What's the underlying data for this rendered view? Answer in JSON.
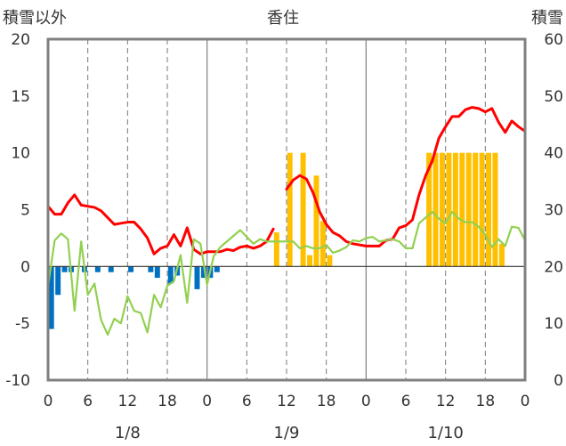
{
  "chart_data": {
    "type": "bar+line",
    "title": "香住",
    "left_axis_label": "積雪以外",
    "right_axis_label": "積雪",
    "left_ylim": [
      -10,
      20
    ],
    "left_yticks": [
      "-10",
      "-5",
      "0",
      "5",
      "10",
      "15",
      "20"
    ],
    "right_ylim": [
      0,
      60
    ],
    "right_yticks": [
      "0",
      "10",
      "20",
      "30",
      "40",
      "50",
      "60"
    ],
    "x_range_hours": [
      0,
      72
    ],
    "x_tick_labels": [
      "0",
      "6",
      "12",
      "18",
      "0",
      "6",
      "12",
      "18",
      "0",
      "6",
      "12",
      "18",
      "0"
    ],
    "date_labels": [
      "1/8",
      "1/9",
      "1/10"
    ],
    "grid": true,
    "colors": {
      "temperature": "#ff0000",
      "wind": "#92d050",
      "precipitation_positive": "#ffc000",
      "precipitation_negative": "#0070c0",
      "snow_depth": "#7030a0",
      "frame": "#808080"
    },
    "series": [
      {
        "axis": "left",
        "kind": "bar",
        "x_hours": [
          0,
          1,
          2,
          3,
          5,
          7,
          9,
          12,
          15,
          16,
          18,
          19,
          22,
          23,
          24,
          25,
          34,
          36,
          38,
          39,
          40,
          41,
          42,
          57,
          58,
          59,
          60,
          61,
          62,
          63,
          64,
          65,
          66,
          67,
          68
        ],
        "values": [
          -5.5,
          -2.5,
          -0.5,
          -0.5,
          -0.5,
          -0.5,
          -0.5,
          -0.5,
          -0.5,
          -1.0,
          -1.5,
          -0.8,
          -2.0,
          -1.0,
          -1.0,
          -0.5,
          3.0,
          10.0,
          10.0,
          1.0,
          8.0,
          4.0,
          1.0,
          10.0,
          10.0,
          10.0,
          10.0,
          10.0,
          10.0,
          10.0,
          10.0,
          10.0,
          10.0,
          10.0,
          2.0
        ]
      },
      {
        "axis": "left",
        "kind": "line",
        "x_hours": [
          0,
          1,
          2,
          3,
          4,
          5,
          6,
          7,
          8,
          9,
          10,
          11,
          12,
          13,
          14,
          15,
          16,
          17,
          18,
          19,
          20,
          21,
          22,
          23,
          24,
          25,
          26,
          27,
          28,
          29,
          30,
          31,
          32,
          33,
          34
        ],
        "values": [
          5.3,
          4.6,
          4.6,
          5.6,
          6.3,
          5.4,
          5.3,
          5.2,
          4.9,
          4.3,
          3.7,
          3.8,
          3.9,
          3.9,
          3.3,
          2.5,
          1.1,
          1.6,
          1.8,
          2.8,
          1.8,
          3.4,
          1.5,
          1.1,
          1.3,
          1.3,
          1.3,
          1.5,
          1.4,
          1.7,
          1.8,
          1.6,
          1.8,
          2.2,
          3.3
        ]
      },
      {
        "axis": "left",
        "kind": "line",
        "x_hours": [
          36,
          37,
          38,
          39,
          40,
          41,
          42,
          43,
          44,
          45,
          46,
          47,
          48,
          49,
          50,
          51,
          52,
          53,
          54,
          55,
          56,
          57,
          58,
          59,
          60,
          61,
          62,
          63,
          64,
          65,
          66,
          67,
          68,
          69,
          70,
          71,
          72
        ],
        "values": [
          6.8,
          7.6,
          8.0,
          7.7,
          6.5,
          4.8,
          3.7,
          3.0,
          2.7,
          2.2,
          2.0,
          1.9,
          1.8,
          1.8,
          1.8,
          2.3,
          2.4,
          3.4,
          3.6,
          4.1,
          6.3,
          8.0,
          9.3,
          11.3,
          12.3,
          13.2,
          13.2,
          13.8,
          14.0,
          13.9,
          13.6,
          13.9,
          12.7,
          11.8,
          12.8,
          12.3,
          11.9
        ]
      },
      {
        "axis": "left",
        "kind": "line",
        "x_hours": [
          0,
          1,
          2,
          3,
          4,
          5,
          6,
          7,
          8,
          9,
          10,
          11,
          12,
          13,
          14,
          15,
          16,
          17,
          18,
          19,
          20,
          21,
          22,
          23,
          24,
          25,
          26,
          27,
          28,
          29,
          30,
          31,
          32,
          33,
          34,
          35,
          36,
          37,
          38,
          39,
          40,
          41,
          42,
          43,
          44,
          45,
          46,
          47,
          48,
          49,
          50,
          51,
          52,
          53,
          54,
          55,
          56,
          57,
          58,
          59,
          60,
          61,
          62,
          63,
          64,
          65,
          66,
          67,
          68,
          69,
          70,
          71,
          72
        ],
        "values": [
          -1.7,
          2.3,
          2.9,
          2.4,
          -3.9,
          2.2,
          -2.5,
          -1.5,
          -4.7,
          -6.0,
          -4.6,
          -5.0,
          -2.6,
          -3.9,
          -4.1,
          -5.8,
          -2.5,
          -3.6,
          -1.7,
          -1.3,
          1.0,
          -3.2,
          2.4,
          2.0,
          -1.6,
          0.9,
          1.7,
          2.2,
          2.7,
          3.2,
          2.6,
          2.0,
          2.4,
          2.2,
          2.2,
          2.2,
          2.2,
          2.2,
          1.6,
          1.8,
          1.6,
          1.6,
          1.9,
          1.2,
          1.4,
          1.7,
          2.3,
          2.2,
          2.5,
          2.6,
          2.2,
          2.3,
          2.4,
          2.2,
          1.6,
          1.6,
          3.8,
          4.3,
          4.8,
          4.2,
          3.8,
          4.8,
          4.2,
          3.9,
          3.9,
          3.5,
          2.8,
          1.7,
          2.4,
          1.8,
          3.5,
          3.4,
          2.3
        ]
      },
      {
        "axis": "right",
        "kind": "line",
        "x_hours": [
          0,
          72
        ],
        "values": [
          0,
          0
        ]
      }
    ]
  }
}
